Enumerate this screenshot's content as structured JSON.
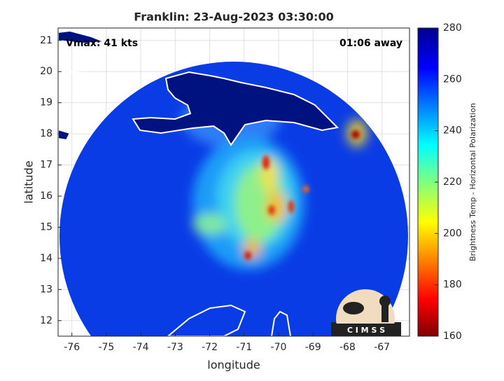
{
  "chart_data": {
    "type": "map",
    "title": "Franklin: 23-Aug-2023 03:30:00",
    "annotations": [
      "Vmax: 41 kts",
      "01:06 away"
    ],
    "xlabel": "longitude",
    "ylabel": "latitude",
    "xlim": [
      -76.4,
      -66.2
    ],
    "xticks": [
      -76,
      -75,
      -74,
      -73,
      -72,
      -71,
      -70,
      -69,
      -68,
      -67
    ],
    "ylim": [
      11.5,
      21.4
    ],
    "yticks": [
      12,
      13,
      14,
      15,
      16,
      17,
      18,
      19,
      20,
      21
    ],
    "grid": true,
    "colorbar": {
      "label": "Brightness Temp - Horizontal Polarization",
      "lim": [
        160,
        280
      ],
      "ticks": [
        160,
        180,
        200,
        220,
        240,
        260,
        280
      ]
    },
    "logo": "C I M S S"
  }
}
